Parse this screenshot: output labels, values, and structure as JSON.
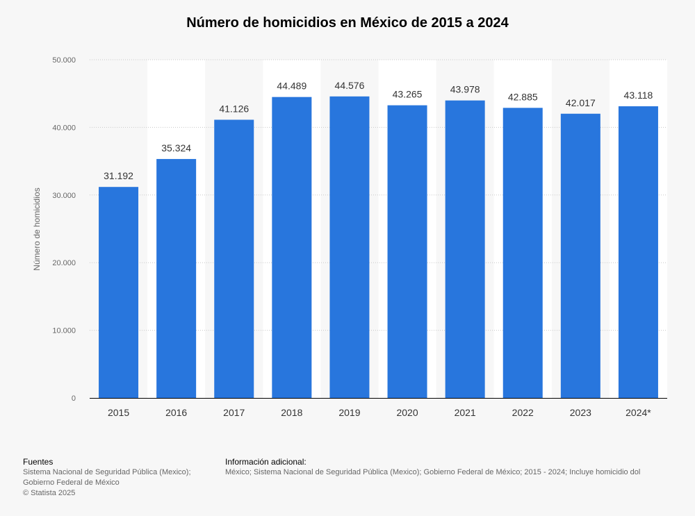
{
  "chart_data": {
    "type": "bar",
    "title": "Número de homicidios en México de 2015 a 2024",
    "ylabel": "Número de homicidios",
    "xlabel": "",
    "categories": [
      "2015",
      "2016",
      "2017",
      "2018",
      "2019",
      "2020",
      "2021",
      "2022",
      "2023",
      "2024*"
    ],
    "values": [
      31192,
      35324,
      41126,
      44489,
      44576,
      43265,
      43978,
      42885,
      42017,
      43118
    ],
    "value_labels": [
      "31.192",
      "35.324",
      "41.126",
      "44.489",
      "44.576",
      "43.265",
      "43.978",
      "42.885",
      "42.017",
      "43.118"
    ],
    "ylim": [
      0,
      50000
    ],
    "yticks": [
      0,
      10000,
      20000,
      30000,
      40000,
      50000
    ],
    "ytick_labels": [
      "0",
      "10.000",
      "20.000",
      "30.000",
      "40.000",
      "50.000"
    ],
    "grid": true,
    "legend": "none",
    "bar_color": "#2876dd"
  },
  "footer": {
    "sources_title": "Fuentes",
    "sources_line1": "Sistema Nacional de Seguridad Pública (Mexico);",
    "sources_line2": "Gobierno Federal de México",
    "copyright": "© Statista 2025",
    "info_title": "Información adicional:",
    "info_text": "México; Sistema Nacional de Seguridad Pública (Mexico); Gobierno Federal de México; 2015 - 2024; Incluye homicidio dol"
  }
}
